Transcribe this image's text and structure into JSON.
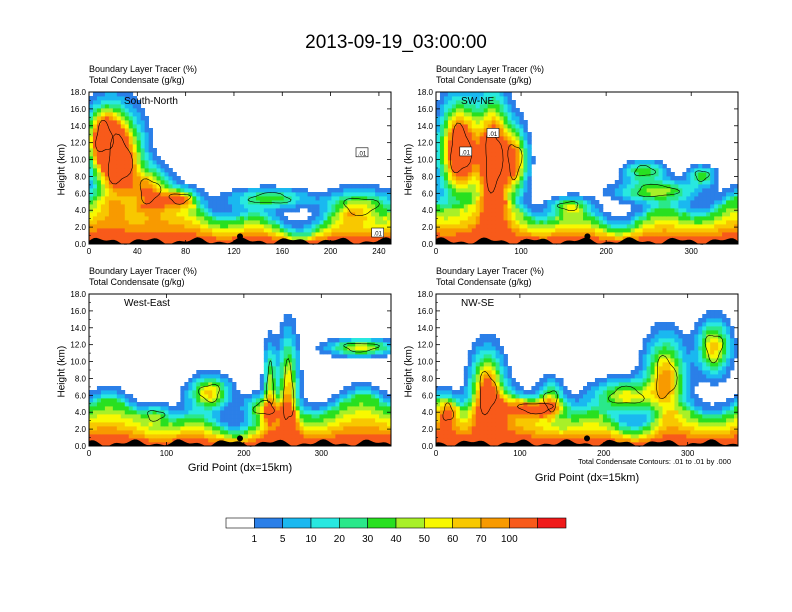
{
  "title": "2013-09-19_03:00:00",
  "colors": [
    "#ffffff",
    "#2b7fe8",
    "#1ab8f0",
    "#28e8e0",
    "#2ae88a",
    "#28e020",
    "#a8f028",
    "#f8f800",
    "#f8c800",
    "#f89a00",
    "#f85a1a",
    "#f01a1a"
  ],
  "colorbar": {
    "labels": [
      "1",
      "5",
      "10",
      "20",
      "30",
      "40",
      "50",
      "60",
      "70",
      "100"
    ]
  },
  "panels": [
    {
      "id": "south-north",
      "label": "South-North",
      "title_line1": "Boundary Layer Tracer   (%)",
      "title_line2": "Total Condensate   (g/kg)",
      "ylabel": "Height (km)",
      "xlabel": "",
      "yticks": [
        "0.0",
        "2.0",
        "4.0",
        "6.0",
        "8.0",
        "10.0",
        "12.0",
        "14.0",
        "16.0",
        "18.0"
      ],
      "xmax": 250,
      "xticks": [
        0,
        40,
        80,
        120,
        160,
        200,
        240
      ],
      "marker_x": 125,
      "contour_labels": [
        {
          "text": ".01",
          "x": 226,
          "y": 10.8
        },
        {
          "text": ".01",
          "x": 239,
          "y": 1.3
        }
      ],
      "contour_note": ""
    },
    {
      "id": "sw-ne",
      "label": "SW-NE",
      "title_line1": "Boundary Layer Tracer   (%)",
      "title_line2": "Total Condensate   (g/kg)",
      "ylabel": "Height (km)",
      "xlabel": "",
      "yticks": [
        "0.0",
        "2.0",
        "4.0",
        "6.0",
        "8.0",
        "10.0",
        "12.0",
        "14.0",
        "16.0",
        "18.0"
      ],
      "xmax": 355,
      "xticks": [
        0,
        100,
        200,
        300
      ],
      "marker_x": 178,
      "contour_labels": [
        {
          "text": ".01",
          "x": 35,
          "y": 10.9
        },
        {
          "text": ".01",
          "x": 67,
          "y": 13.1
        }
      ],
      "contour_note": ""
    },
    {
      "id": "west-east",
      "label": "West-East",
      "title_line1": "Boundary Layer Tracer   (%)",
      "title_line2": "Total Condensate   (g/kg)",
      "ylabel": "Height (km)",
      "xlabel": "Grid Point (dx=15km)",
      "yticks": [
        "0.0",
        "2.0",
        "4.0",
        "6.0",
        "8.0",
        "10.0",
        "12.0",
        "14.0",
        "16.0",
        "18.0"
      ],
      "xmax": 390,
      "xticks": [
        0,
        100,
        200,
        300
      ],
      "marker_x": 195,
      "contour_labels": [],
      "contour_note": ""
    },
    {
      "id": "nw-se",
      "label": "NW-SE",
      "title_line1": "Boundary Layer Tracer   (%)",
      "title_line2": "Total Condensate   (g/kg)",
      "ylabel": "Height (km)",
      "xlabel": "Grid Point (dx=15km)",
      "yticks": [
        "0.0",
        "2.0",
        "4.0",
        "6.0",
        "8.0",
        "10.0",
        "12.0",
        "14.0",
        "16.0",
        "18.0"
      ],
      "xmax": 360,
      "xticks": [
        0,
        100,
        200,
        300
      ],
      "marker_x": 180,
      "contour_labels": [],
      "contour_note": "Total Condensate Contours: .01 to .01 by .000"
    }
  ],
  "chart_data": {
    "type": "heatmap",
    "title": "2013-09-19_03:00:00",
    "value_label": "Boundary Layer Tracer (%)",
    "color_levels": [
      1,
      5,
      10,
      20,
      30,
      40,
      50,
      60,
      70,
      100
    ],
    "ylabel": "Height (km)",
    "xlabel": "Grid Point (dx=15km)",
    "ylim": [
      0,
      18
    ],
    "contour_field": "Total Condensate (g/kg)",
    "contour_levels": [
      0.01
    ],
    "panels": [
      {
        "name": "South-North",
        "xlim": [
          0,
          250
        ]
      },
      {
        "name": "SW-NE",
        "xlim": [
          0,
          355
        ]
      },
      {
        "name": "West-East",
        "xlim": [
          0,
          390
        ]
      },
      {
        "name": "NW-SE",
        "xlim": [
          0,
          360
        ]
      }
    ]
  }
}
